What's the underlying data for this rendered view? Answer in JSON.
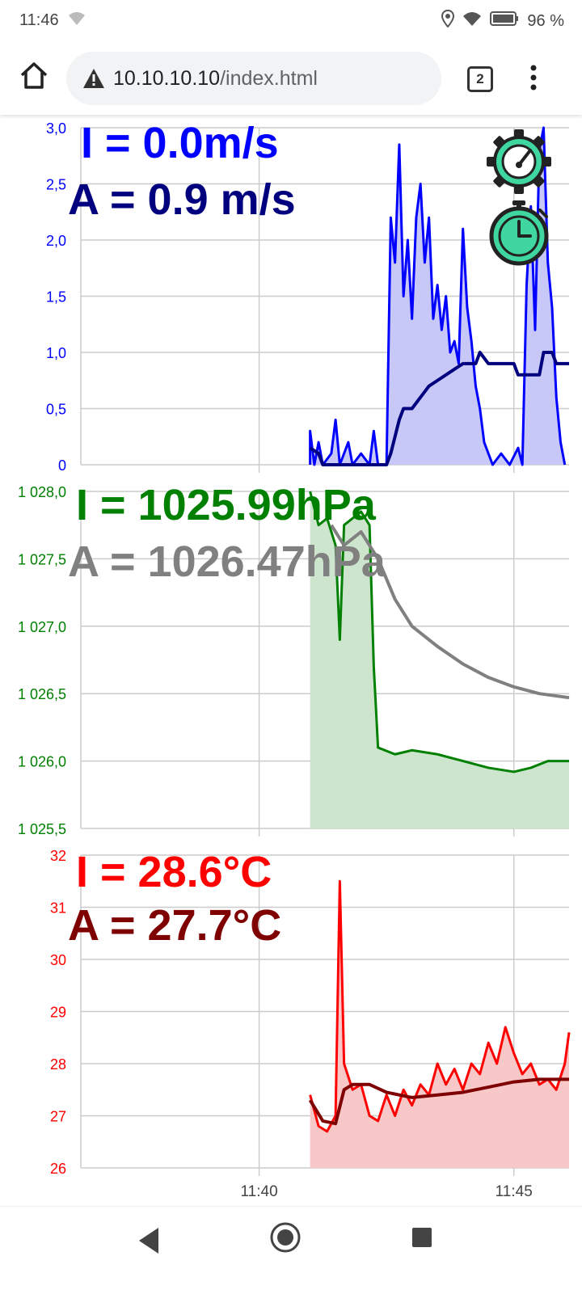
{
  "status_bar": {
    "time": "11:46",
    "battery": "96 %"
  },
  "browser": {
    "url_host": "10.10.10.10",
    "url_path": "/index.html",
    "tab_count": "2"
  },
  "wind": {
    "instant": "I = 0.0m/s",
    "average": "A = 0.9 m/s",
    "instant_color": "#0000ff",
    "average_color": "#00007f"
  },
  "pressure": {
    "instant": "I = 1025.99hPa",
    "average": "A = 1026.47hPa",
    "instant_color": "#008000",
    "average_color": "#808080"
  },
  "temperature": {
    "instant": "I = 28.6°C",
    "average": "A = 27.7°C",
    "instant_color": "#ff0000",
    "average_color": "#7f0000"
  },
  "icons": [
    "gear-gauge-icon",
    "stopwatch-icon"
  ],
  "chart_data": [
    {
      "type": "area",
      "ylim": [
        0,
        3.0
      ],
      "ytick_labels": [
        "0",
        "0,5",
        "1,0",
        "1,5",
        "2,0",
        "2,5",
        "3,0"
      ],
      "xlim": [
        "11:36:30",
        "11:46:05"
      ],
      "series": [
        {
          "color": "#0000ff",
          "fill": "#c8c8f8",
          "points": [
            [
              "11:41:00",
              0
            ],
            [
              "11:41:00",
              0.3
            ],
            [
              "11:41:05",
              0
            ],
            [
              "11:41:10",
              0.2
            ],
            [
              "11:41:15",
              0
            ],
            [
              "11:41:25",
              0.1
            ],
            [
              "11:41:30",
              0.4
            ],
            [
              "11:41:35",
              0
            ],
            [
              "11:41:45",
              0.2
            ],
            [
              "11:41:50",
              0
            ],
            [
              "11:42:00",
              0.1
            ],
            [
              "11:42:10",
              0
            ],
            [
              "11:42:15",
              0.3
            ],
            [
              "11:42:20",
              0
            ],
            [
              "11:42:30",
              0
            ],
            [
              "11:42:35",
              2.2
            ],
            [
              "11:42:40",
              1.8
            ],
            [
              "11:42:45",
              2.85
            ],
            [
              "11:42:50",
              1.5
            ],
            [
              "11:42:55",
              2.0
            ],
            [
              "11:43:00",
              1.3
            ],
            [
              "11:43:05",
              2.2
            ],
            [
              "11:43:10",
              2.5
            ],
            [
              "11:43:15",
              1.8
            ],
            [
              "11:43:20",
              2.2
            ],
            [
              "11:43:25",
              1.3
            ],
            [
              "11:43:30",
              1.6
            ],
            [
              "11:43:35",
              1.2
            ],
            [
              "11:43:40",
              1.5
            ],
            [
              "11:43:45",
              1.0
            ],
            [
              "11:43:50",
              1.1
            ],
            [
              "11:43:55",
              0.9
            ],
            [
              "11:44:00",
              2.1
            ],
            [
              "11:44:05",
              1.4
            ],
            [
              "11:44:10",
              1.1
            ],
            [
              "11:44:15",
              0.7
            ],
            [
              "11:44:20",
              0.5
            ],
            [
              "11:44:25",
              0.2
            ],
            [
              "11:44:30",
              0.1
            ],
            [
              "11:44:35",
              0
            ],
            [
              "11:44:45",
              0.1
            ],
            [
              "11:44:55",
              0
            ],
            [
              "11:45:05",
              0.15
            ],
            [
              "11:45:10",
              0
            ],
            [
              "11:45:15",
              1.6
            ],
            [
              "11:45:20",
              2.3
            ],
            [
              "11:45:25",
              1.2
            ],
            [
              "11:45:30",
              2.8
            ],
            [
              "11:45:35",
              3.0
            ],
            [
              "11:45:40",
              1.8
            ],
            [
              "11:45:45",
              1.4
            ],
            [
              "11:45:50",
              0.6
            ],
            [
              "11:45:55",
              0.2
            ],
            [
              "11:46:00",
              0
            ]
          ]
        },
        {
          "color": "#00007f",
          "points": [
            [
              "11:41:00",
              0.15
            ],
            [
              "11:41:10",
              0.1
            ],
            [
              "11:41:15",
              0
            ],
            [
              "11:42:30",
              0
            ],
            [
              "11:42:35",
              0.1
            ],
            [
              "11:42:45",
              0.4
            ],
            [
              "11:42:50",
              0.5
            ],
            [
              "11:43:00",
              0.5
            ],
            [
              "11:43:10",
              0.6
            ],
            [
              "11:43:20",
              0.7
            ],
            [
              "11:43:30",
              0.75
            ],
            [
              "11:43:40",
              0.8
            ],
            [
              "11:43:50",
              0.85
            ],
            [
              "11:44:00",
              0.9
            ],
            [
              "11:44:15",
              0.9
            ],
            [
              "11:44:20",
              1.0
            ],
            [
              "11:44:30",
              0.9
            ],
            [
              "11:45:00",
              0.9
            ],
            [
              "11:45:05",
              0.8
            ],
            [
              "11:45:30",
              0.8
            ],
            [
              "11:45:35",
              1.0
            ],
            [
              "11:45:45",
              1.0
            ],
            [
              "11:45:50",
              0.9
            ],
            [
              "11:46:05",
              0.9
            ]
          ]
        }
      ]
    },
    {
      "type": "area",
      "ylim": [
        1025.5,
        1028.0
      ],
      "ytick_labels": [
        "1 025,5",
        "1 026,0",
        "1 026,5",
        "1 027,0",
        "1 027,5",
        "1 028,0"
      ],
      "xlim": [
        "11:36:30",
        "11:46:05"
      ],
      "series": [
        {
          "color": "#008000",
          "fill": "#cde5cd",
          "points": [
            [
              "11:41:00",
              1028.0
            ],
            [
              "11:41:10",
              1027.75
            ],
            [
              "11:41:20",
              1027.8
            ],
            [
              "11:41:30",
              1027.6
            ],
            [
              "11:41:35",
              1026.9
            ],
            [
              "11:41:40",
              1027.75
            ],
            [
              "11:41:50",
              1027.8
            ],
            [
              "11:42:00",
              1027.85
            ],
            [
              "11:42:10",
              1027.75
            ],
            [
              "11:42:15",
              1026.7
            ],
            [
              "11:42:20",
              1026.1
            ],
            [
              "11:42:40",
              1026.05
            ],
            [
              "11:43:00",
              1026.08
            ],
            [
              "11:43:30",
              1026.05
            ],
            [
              "11:44:00",
              1026.0
            ],
            [
              "11:44:30",
              1025.95
            ],
            [
              "11:45:00",
              1025.92
            ],
            [
              "11:45:20",
              1025.95
            ],
            [
              "11:45:40",
              1026.0
            ],
            [
              "11:46:05",
              1026.0
            ]
          ]
        },
        {
          "color": "#808080",
          "points": [
            [
              "11:41:25",
              1027.75
            ],
            [
              "11:41:40",
              1027.6
            ],
            [
              "11:42:00",
              1027.7
            ],
            [
              "11:42:20",
              1027.5
            ],
            [
              "11:42:40",
              1027.2
            ],
            [
              "11:43:00",
              1027.0
            ],
            [
              "11:43:30",
              1026.85
            ],
            [
              "11:44:00",
              1026.72
            ],
            [
              "11:44:30",
              1026.62
            ],
            [
              "11:45:00",
              1026.55
            ],
            [
              "11:45:30",
              1026.5
            ],
            [
              "11:46:05",
              1026.47
            ]
          ]
        }
      ]
    },
    {
      "type": "area",
      "ylim": [
        26,
        32
      ],
      "ytick_labels": [
        "26",
        "27",
        "28",
        "29",
        "30",
        "31",
        "32"
      ],
      "xlim": [
        "11:36:30",
        "11:46:05"
      ],
      "series": [
        {
          "color": "#ff0000",
          "fill": "#f8c8c8",
          "points": [
            [
              "11:41:00",
              27.4
            ],
            [
              "11:41:10",
              26.8
            ],
            [
              "11:41:20",
              26.7
            ],
            [
              "11:41:30",
              27.0
            ],
            [
              "11:41:35",
              31.5
            ],
            [
              "11:41:40",
              28.0
            ],
            [
              "11:41:50",
              27.5
            ],
            [
              "11:42:00",
              27.6
            ],
            [
              "11:42:10",
              27.0
            ],
            [
              "11:42:20",
              26.9
            ],
            [
              "11:42:30",
              27.4
            ],
            [
              "11:42:40",
              27.0
            ],
            [
              "11:42:50",
              27.5
            ],
            [
              "11:43:00",
              27.2
            ],
            [
              "11:43:10",
              27.6
            ],
            [
              "11:43:20",
              27.4
            ],
            [
              "11:43:30",
              28.0
            ],
            [
              "11:43:40",
              27.6
            ],
            [
              "11:43:50",
              27.9
            ],
            [
              "11:44:00",
              27.5
            ],
            [
              "11:44:10",
              28.0
            ],
            [
              "11:44:20",
              27.8
            ],
            [
              "11:44:30",
              28.4
            ],
            [
              "11:44:40",
              28.0
            ],
            [
              "11:44:50",
              28.7
            ],
            [
              "11:45:00",
              28.2
            ],
            [
              "11:45:10",
              27.8
            ],
            [
              "11:45:20",
              28.0
            ],
            [
              "11:45:30",
              27.6
            ],
            [
              "11:45:40",
              27.7
            ],
            [
              "11:45:50",
              27.5
            ],
            [
              "11:46:00",
              28.0
            ],
            [
              "11:46:05",
              28.6
            ]
          ]
        },
        {
          "color": "#7f0000",
          "points": [
            [
              "11:41:00",
              27.3
            ],
            [
              "11:41:15",
              26.9
            ],
            [
              "11:41:30",
              26.85
            ],
            [
              "11:41:40",
              27.5
            ],
            [
              "11:41:50",
              27.6
            ],
            [
              "11:42:10",
              27.6
            ],
            [
              "11:42:30",
              27.45
            ],
            [
              "11:43:00",
              27.35
            ],
            [
              "11:43:30",
              27.4
            ],
            [
              "11:44:00",
              27.45
            ],
            [
              "11:44:30",
              27.55
            ],
            [
              "11:45:00",
              27.65
            ],
            [
              "11:45:30",
              27.7
            ],
            [
              "11:46:05",
              27.7
            ]
          ]
        }
      ]
    }
  ],
  "x_axis": {
    "tick_labels": [
      "11:40",
      "11:45"
    ],
    "tick_times": [
      "11:40:00",
      "11:45:00"
    ]
  }
}
